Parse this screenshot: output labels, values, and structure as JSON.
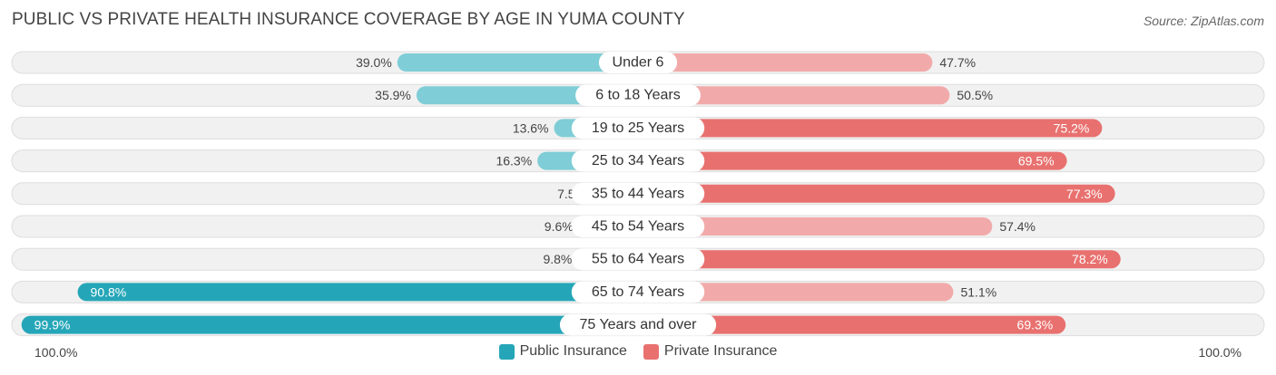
{
  "title": "PUBLIC VS PRIVATE HEALTH INSURANCE COVERAGE BY AGE IN YUMA COUNTY",
  "source": "Source: ZipAtlas.com",
  "colors": {
    "public": "#25a6b8",
    "public_light": "#7fcdd6",
    "private": "#e8716f",
    "private_light": "#f1aaa9",
    "row_bg": "#f1f1f1",
    "row_border": "#dddddd"
  },
  "axis": {
    "left_label": "100.0%",
    "right_label": "100.0%"
  },
  "chart_data": {
    "type": "bar",
    "orientation": "horizontal-diverging",
    "categories": [
      "Under 6",
      "6 to 18 Years",
      "19 to 25 Years",
      "25 to 34 Years",
      "35 to 44 Years",
      "45 to 54 Years",
      "55 to 64 Years",
      "65 to 74 Years",
      "75 Years and over"
    ],
    "series": [
      {
        "name": "Public Insurance",
        "values": [
          39.0,
          35.9,
          13.6,
          16.3,
          7.5,
          9.6,
          9.8,
          90.8,
          99.9
        ],
        "labels": [
          "39.0%",
          "35.9%",
          "13.6%",
          "16.3%",
          "7.5%",
          "9.6%",
          "9.8%",
          "90.8%",
          "99.9%"
        ]
      },
      {
        "name": "Private Insurance",
        "values": [
          47.7,
          50.5,
          75.2,
          69.5,
          77.3,
          57.4,
          78.2,
          51.1,
          69.3
        ],
        "labels": [
          "47.7%",
          "50.5%",
          "75.2%",
          "69.5%",
          "77.3%",
          "57.4%",
          "78.2%",
          "51.1%",
          "69.3%"
        ]
      }
    ],
    "xlim": [
      -100,
      100
    ],
    "legend_position": "bottom-center"
  }
}
